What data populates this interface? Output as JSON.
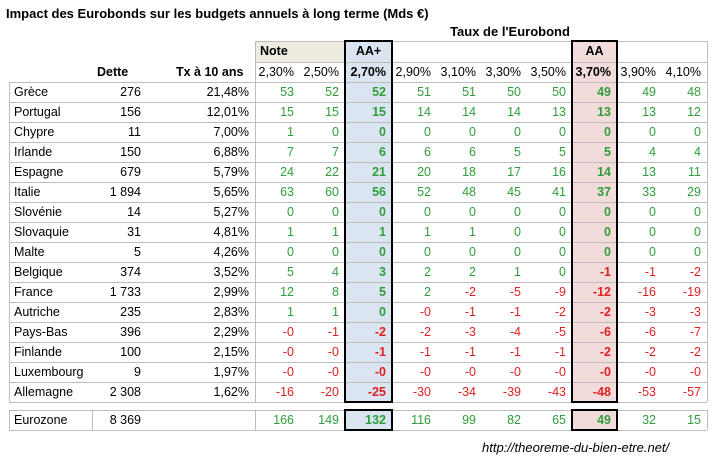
{
  "title": "Impact des Eurobonds sur les budgets annuels à long terme (Mds €)",
  "taux_header": "Taux de l'Eurobond",
  "group_labels": {
    "note": "Note",
    "aaplus": "AA+",
    "aa": "AA"
  },
  "col_headers": {
    "dette": "Dette",
    "tx10": "Tx à 10 ans",
    "rates": [
      "2,30%",
      "2,50%",
      "2,70%",
      "2,90%",
      "3,10%",
      "3,30%",
      "3,50%",
      "3,70%",
      "3,90%",
      "4,10%"
    ]
  },
  "rows": [
    {
      "country": "Grèce",
      "dette": "276",
      "tx": "21,48%",
      "v": [
        "53",
        "52",
        "52",
        "51",
        "51",
        "50",
        "50",
        "49",
        "49",
        "48"
      ]
    },
    {
      "country": "Portugal",
      "dette": "156",
      "tx": "12,01%",
      "v": [
        "15",
        "15",
        "15",
        "14",
        "14",
        "14",
        "13",
        "13",
        "13",
        "12"
      ]
    },
    {
      "country": "Chypre",
      "dette": "11",
      "tx": "7,00%",
      "v": [
        "1",
        "0",
        "0",
        "0",
        "0",
        "0",
        "0",
        "0",
        "0",
        "0"
      ]
    },
    {
      "country": "Irlande",
      "dette": "150",
      "tx": "6,88%",
      "v": [
        "7",
        "7",
        "6",
        "6",
        "6",
        "5",
        "5",
        "5",
        "4",
        "4"
      ]
    },
    {
      "country": "Espagne",
      "dette": "679",
      "tx": "5,79%",
      "v": [
        "24",
        "22",
        "21",
        "20",
        "18",
        "17",
        "16",
        "14",
        "13",
        "11"
      ]
    },
    {
      "country": "Italie",
      "dette": "1 894",
      "tx": "5,65%",
      "v": [
        "63",
        "60",
        "56",
        "52",
        "48",
        "45",
        "41",
        "37",
        "33",
        "29"
      ]
    },
    {
      "country": "Slovénie",
      "dette": "14",
      "tx": "5,27%",
      "v": [
        "0",
        "0",
        "0",
        "0",
        "0",
        "0",
        "0",
        "0",
        "0",
        "0"
      ]
    },
    {
      "country": "Slovaquie",
      "dette": "31",
      "tx": "4,81%",
      "v": [
        "1",
        "1",
        "1",
        "1",
        "1",
        "0",
        "0",
        "0",
        "0",
        "0"
      ]
    },
    {
      "country": "Malte",
      "dette": "5",
      "tx": "4,26%",
      "v": [
        "0",
        "0",
        "0",
        "0",
        "0",
        "0",
        "0",
        "0",
        "0",
        "0"
      ]
    },
    {
      "country": "Belgique",
      "dette": "374",
      "tx": "3,52%",
      "v": [
        "5",
        "4",
        "3",
        "2",
        "2",
        "1",
        "0",
        "-1",
        "-1",
        "-2"
      ]
    },
    {
      "country": "France",
      "dette": "1 733",
      "tx": "2,99%",
      "v": [
        "12",
        "8",
        "5",
        "2",
        "-2",
        "-5",
        "-9",
        "-12",
        "-16",
        "-19"
      ]
    },
    {
      "country": "Autriche",
      "dette": "235",
      "tx": "2,83%",
      "v": [
        "1",
        "1",
        "0",
        "-0",
        "-1",
        "-1",
        "-2",
        "-2",
        "-3",
        "-3"
      ]
    },
    {
      "country": "Pays-Bas",
      "dette": "396",
      "tx": "2,29%",
      "v": [
        "-0",
        "-1",
        "-2",
        "-2",
        "-3",
        "-4",
        "-5",
        "-6",
        "-6",
        "-7"
      ]
    },
    {
      "country": "Finlande",
      "dette": "100",
      "tx": "2,15%",
      "v": [
        "-0",
        "-0",
        "-1",
        "-1",
        "-1",
        "-1",
        "-1",
        "-2",
        "-2",
        "-2"
      ]
    },
    {
      "country": "Luxembourg",
      "dette": "9",
      "tx": "1,97%",
      "v": [
        "-0",
        "-0",
        "-0",
        "-0",
        "-0",
        "-0",
        "-0",
        "-0",
        "-0",
        "-0"
      ]
    },
    {
      "country": "Allemagne",
      "dette": "2 308",
      "tx": "1,62%",
      "v": [
        "-16",
        "-20",
        "-25",
        "-30",
        "-34",
        "-39",
        "-43",
        "-48",
        "-53",
        "-57"
      ]
    }
  ],
  "total": {
    "country": "Eurozone",
    "dette": "8 369",
    "v": [
      "166",
      "149",
      "132",
      "116",
      "99",
      "82",
      "65",
      "49",
      "32",
      "15"
    ]
  },
  "footer": "http://theoreme-du-bien-etre.net/",
  "colors": {
    "positive": "#2f9e3a",
    "negative": "#e02020",
    "aaplus_bg": "#dbe5f1",
    "aa_bg": "#f2dcdb",
    "note_bg": "#eeece1"
  }
}
